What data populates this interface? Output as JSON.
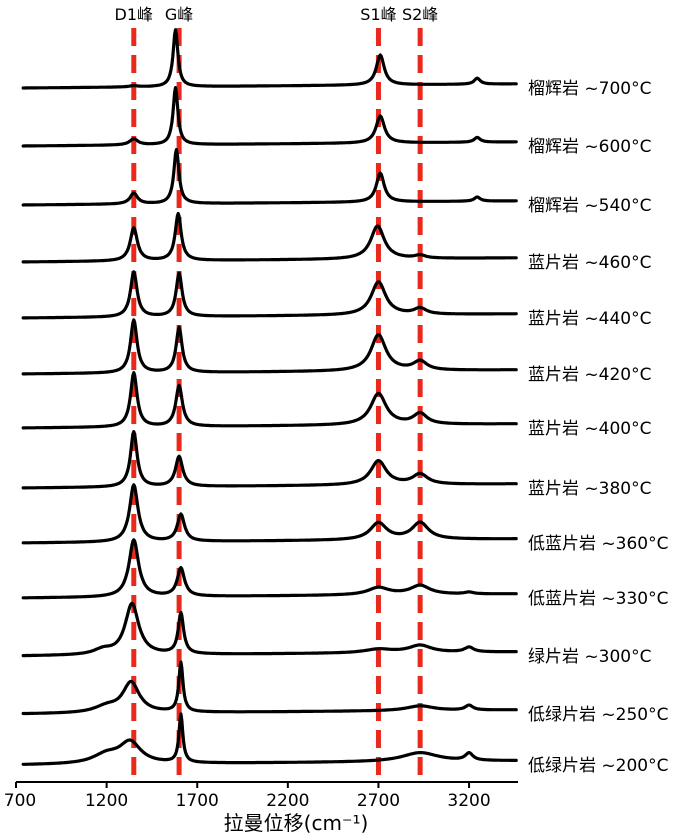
{
  "chart_data": {
    "type": "line",
    "xlabel": "拉曼位移(cm⁻¹)",
    "xlim": [
      700,
      3470
    ],
    "xticks": [
      700,
      1200,
      1700,
      2200,
      2700,
      3200
    ],
    "peak_lines": [
      {
        "label": "D1峰",
        "x": 1350,
        "color": "#e8291c"
      },
      {
        "label": "G峰",
        "x": 1600,
        "color": "#e8291c"
      },
      {
        "label": "S1峰",
        "x": 2700,
        "color": "#e8291c"
      },
      {
        "label": "S2峰",
        "x": 2930,
        "color": "#e8291c"
      }
    ],
    "series": [
      {
        "name": "榴辉岩 ~700°C",
        "peaks": [
          [
            1350,
            0.02,
            30
          ],
          [
            1580,
            0.95,
            16
          ],
          [
            2710,
            0.5,
            26
          ],
          [
            3245,
            0.1,
            20
          ]
        ]
      },
      {
        "name": "榴辉岩 ~600°C",
        "peaks": [
          [
            1350,
            0.1,
            28
          ],
          [
            1580,
            0.95,
            16
          ],
          [
            2710,
            0.45,
            28
          ],
          [
            3245,
            0.08,
            20
          ]
        ]
      },
      {
        "name": "榴辉岩 ~540°C",
        "peaks": [
          [
            1350,
            0.18,
            25
          ],
          [
            1585,
            0.9,
            17
          ],
          [
            2710,
            0.48,
            26
          ],
          [
            3245,
            0.07,
            20
          ]
        ]
      },
      {
        "name": "蓝片岩 ~460°C",
        "peaks": [
          [
            1350,
            0.55,
            24
          ],
          [
            1595,
            0.78,
            20
          ],
          [
            2695,
            0.55,
            45
          ],
          [
            2930,
            0.05,
            35
          ]
        ]
      },
      {
        "name": "蓝片岩 ~440°C",
        "peaks": [
          [
            1350,
            0.75,
            22
          ],
          [
            1600,
            0.72,
            20
          ],
          [
            2700,
            0.55,
            48
          ],
          [
            2930,
            0.1,
            40
          ]
        ]
      },
      {
        "name": "蓝片岩 ~420°C",
        "peaks": [
          [
            1350,
            0.88,
            22
          ],
          [
            1600,
            0.75,
            20
          ],
          [
            2700,
            0.6,
            50
          ],
          [
            2930,
            0.15,
            45
          ]
        ]
      },
      {
        "name": "蓝片岩 ~400°C",
        "peaks": [
          [
            1350,
            0.9,
            22
          ],
          [
            1600,
            0.68,
            22
          ],
          [
            2700,
            0.52,
            52
          ],
          [
            2930,
            0.18,
            45
          ]
        ]
      },
      {
        "name": "蓝片岩 ~380°C",
        "peaks": [
          [
            1350,
            0.92,
            22
          ],
          [
            1600,
            0.5,
            24
          ],
          [
            2700,
            0.4,
            52
          ],
          [
            2930,
            0.17,
            50
          ]
        ]
      },
      {
        "name": "低蓝片岩 ~360°C",
        "peaks": [
          [
            1350,
            0.95,
            28
          ],
          [
            1610,
            0.45,
            24
          ],
          [
            2700,
            0.28,
            55
          ],
          [
            2930,
            0.28,
            55
          ]
        ]
      },
      {
        "name": "低蓝片岩 ~330°C",
        "peaks": [
          [
            1350,
            0.95,
            32
          ],
          [
            1610,
            0.47,
            24
          ],
          [
            2700,
            0.12,
            70
          ],
          [
            2930,
            0.15,
            65
          ],
          [
            3200,
            0.03,
            30
          ]
        ]
      },
      {
        "name": "绿片岩 ~300°C",
        "peaks": [
          [
            1340,
            0.85,
            45
          ],
          [
            1610,
            0.68,
            18
          ],
          [
            1180,
            0.08,
            60
          ],
          [
            2700,
            0.06,
            90
          ],
          [
            2930,
            0.12,
            75
          ],
          [
            3200,
            0.08,
            30
          ]
        ]
      },
      {
        "name": "低绿片岩 ~250°C",
        "peaks": [
          [
            1335,
            0.5,
            55
          ],
          [
            1610,
            0.82,
            14
          ],
          [
            1200,
            0.1,
            80
          ],
          [
            2930,
            0.08,
            90
          ],
          [
            3200,
            0.08,
            25
          ]
        ]
      },
      {
        "name": "低绿片岩 ~200°C",
        "peaks": [
          [
            1330,
            0.35,
            70
          ],
          [
            1610,
            0.8,
            13
          ],
          [
            1200,
            0.15,
            90
          ],
          [
            2930,
            0.15,
            120
          ],
          [
            3200,
            0.12,
            25
          ]
        ]
      }
    ]
  }
}
